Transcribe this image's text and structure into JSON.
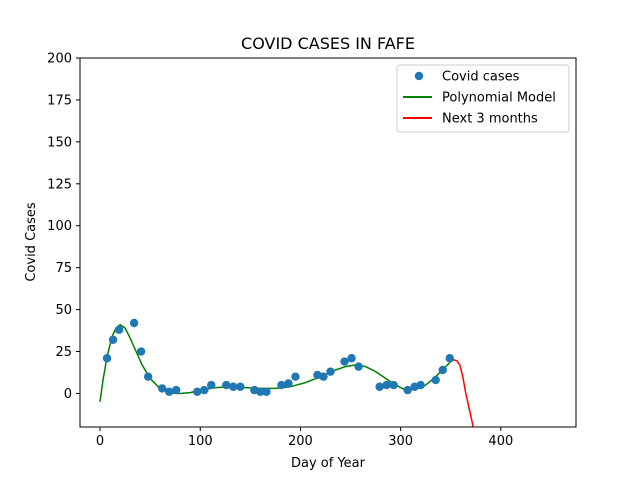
{
  "chart_data": {
    "type": "scatter",
    "title": "COVID CASES IN FAFE",
    "xlabel": "Day of Year",
    "ylabel": "Covid Cases",
    "xlim": [
      -20,
      475
    ],
    "ylim": [
      -20,
      200
    ],
    "xticks": [
      0,
      100,
      200,
      300,
      400
    ],
    "yticks": [
      0,
      25,
      50,
      75,
      100,
      125,
      150,
      175,
      200
    ],
    "grid": false,
    "legend_position": "top-right",
    "series": [
      {
        "name": "Covid cases",
        "kind": "scatter",
        "color": "#1f77b4",
        "x": [
          7,
          13,
          19,
          34,
          41,
          48,
          62,
          69,
          76,
          97,
          104,
          111,
          126,
          133,
          140,
          154,
          160,
          166,
          181,
          188,
          195,
          217,
          223,
          230,
          244,
          251,
          258,
          279,
          286,
          293,
          307,
          314,
          320,
          335,
          342,
          349
        ],
        "y": [
          21,
          32,
          38,
          42,
          25,
          10,
          3,
          1,
          2,
          1,
          2,
          5,
          5,
          4,
          4,
          2,
          1,
          1,
          5,
          6,
          10,
          11,
          10,
          13,
          19,
          21,
          16,
          4,
          5,
          5,
          2,
          4,
          5,
          8,
          14,
          21
        ]
      },
      {
        "name": "Polynomial Model",
        "kind": "line",
        "color": "#008000",
        "x": [
          0,
          3,
          7,
          12,
          16,
          20,
          25,
          30,
          36,
          42,
          50,
          58,
          65,
          72,
          80,
          90,
          100,
          115,
          130,
          145,
          160,
          175,
          190,
          205,
          220,
          235,
          245,
          255,
          265,
          275,
          285,
          295,
          305,
          315,
          325,
          335,
          345,
          350
        ],
        "y": [
          -5,
          8,
          22,
          34,
          39,
          41,
          39,
          33,
          25,
          17,
          9,
          4,
          1.5,
          0.2,
          0,
          0.5,
          2,
          3.5,
          4,
          3.5,
          3,
          3,
          4,
          6.5,
          10,
          14,
          16,
          17,
          16,
          13,
          9,
          5,
          2,
          2.5,
          5,
          10,
          16,
          19
        ]
      },
      {
        "name": "Next 3 months",
        "kind": "line",
        "color": "#ff0000",
        "x": [
          350,
          353,
          356,
          359,
          362,
          365,
          368,
          371,
          373
        ],
        "y": [
          19,
          20,
          19.5,
          17,
          10,
          0,
          -8,
          -16,
          -22
        ]
      }
    ]
  }
}
